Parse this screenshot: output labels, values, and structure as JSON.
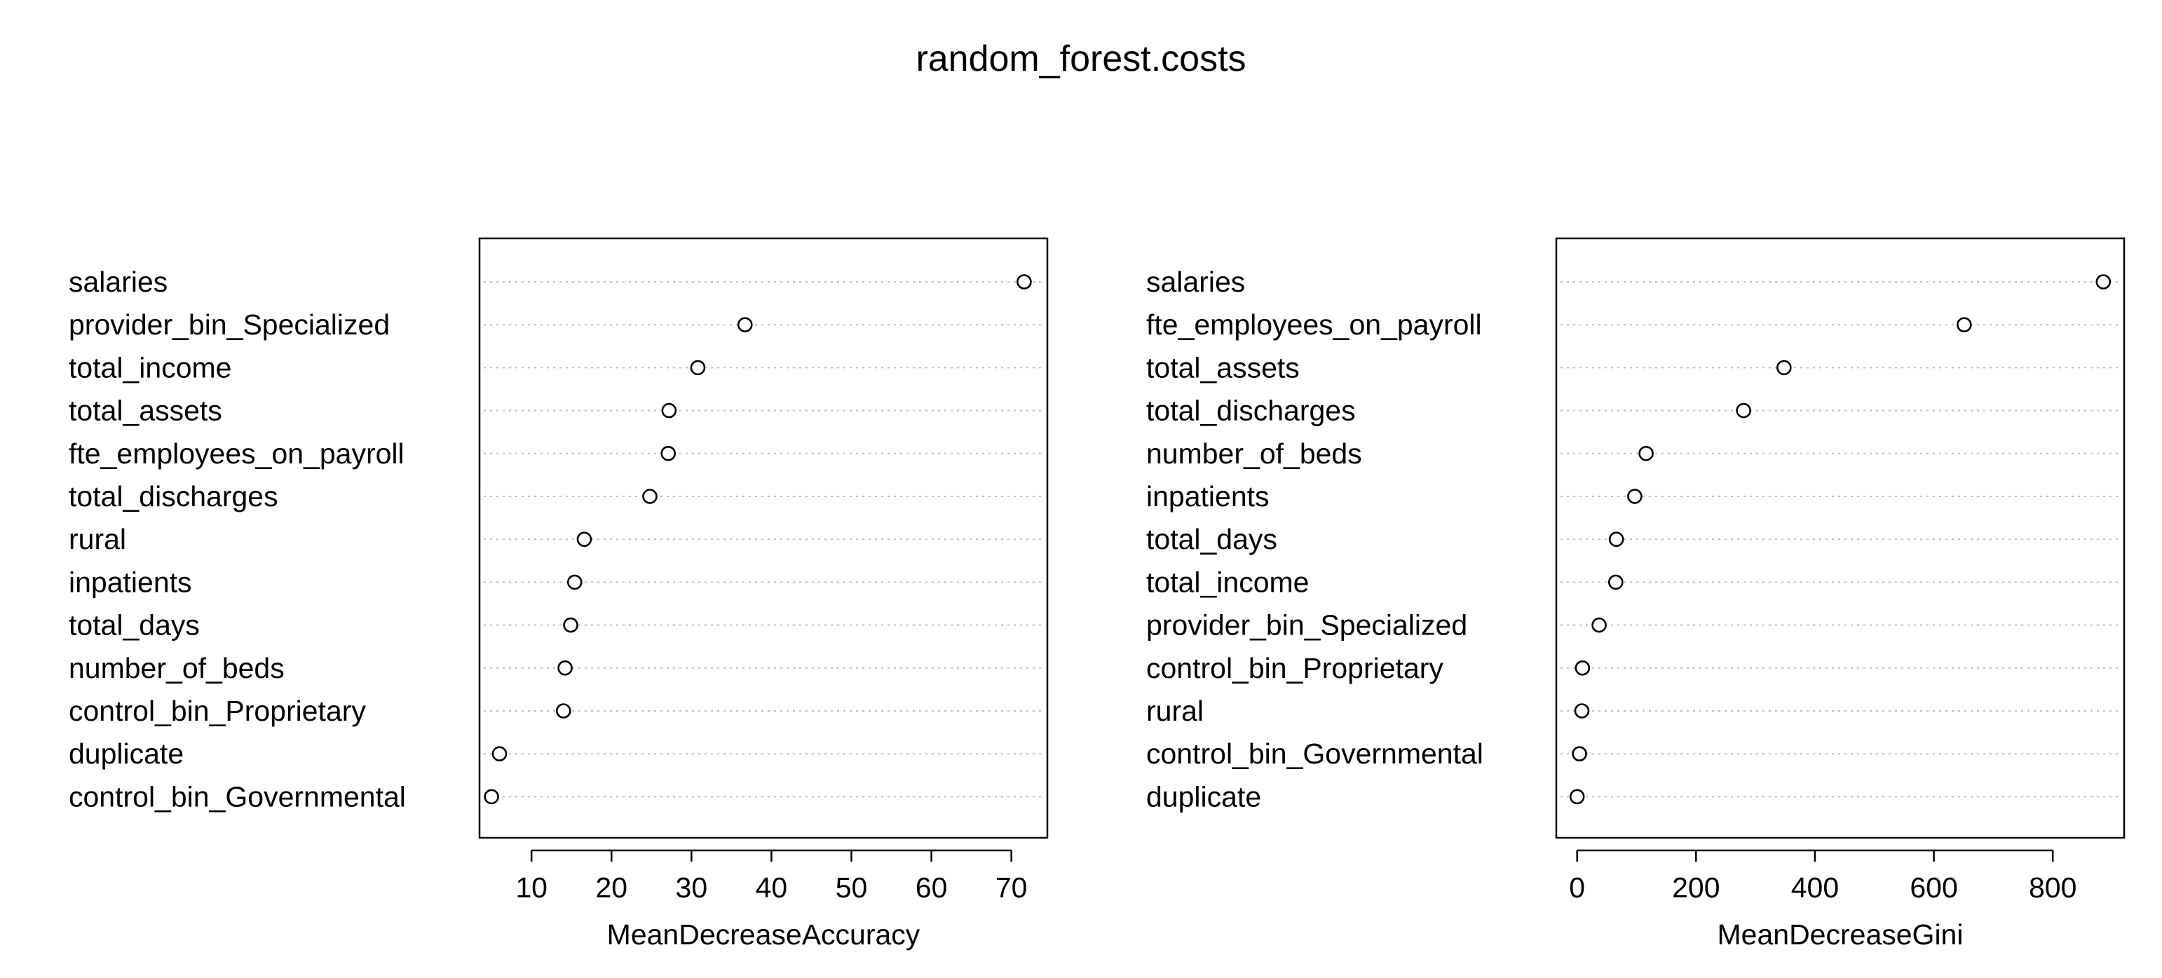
{
  "title": "random_forest.costs",
  "chart_data": [
    {
      "type": "scatter",
      "subtype": "dotchart",
      "xlabel": "MeanDecreaseAccuracy",
      "xlim": [
        3.5,
        74.5
      ],
      "xticks": [
        10,
        20,
        30,
        40,
        50,
        60,
        70
      ],
      "grid": "dotted horizontal lines",
      "categories": [
        "salaries",
        "provider_bin_Specialized",
        "total_income",
        "total_assets",
        "fte_employees_on_payroll",
        "total_discharges",
        "rural",
        "inpatients",
        "total_days",
        "number_of_beds",
        "control_bin_Proprietary",
        "duplicate",
        "control_bin_Governmental"
      ],
      "values": [
        71.6,
        36.7,
        30.8,
        27.2,
        27.1,
        24.8,
        16.6,
        15.4,
        14.9,
        14.2,
        14.0,
        6.0,
        5.0
      ]
    },
    {
      "type": "scatter",
      "subtype": "dotchart",
      "xlabel": "MeanDecreaseGini",
      "xlim": [
        -35,
        920
      ],
      "xticks": [
        0,
        200,
        400,
        600,
        800
      ],
      "grid": "dotted horizontal lines",
      "categories": [
        "salaries",
        "fte_employees_on_payroll",
        "total_assets",
        "total_discharges",
        "number_of_beds",
        "inpatients",
        "total_days",
        "total_income",
        "provider_bin_Specialized",
        "control_bin_Proprietary",
        "rural",
        "control_bin_Governmental",
        "duplicate"
      ],
      "values": [
        885,
        651,
        348,
        280,
        116,
        97,
        66,
        65,
        37,
        9,
        8,
        4,
        0
      ]
    }
  ]
}
